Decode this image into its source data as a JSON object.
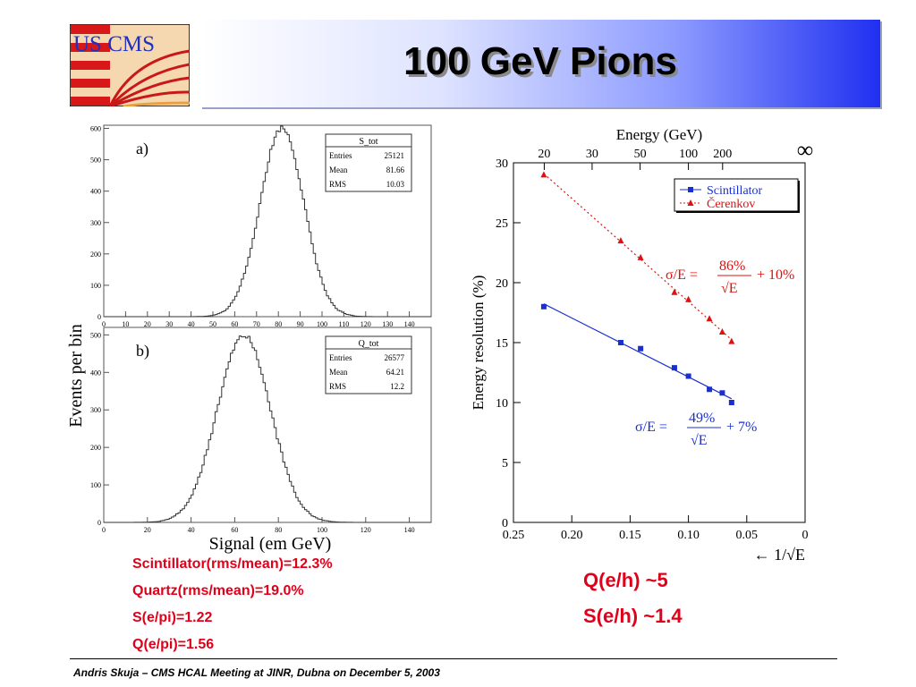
{
  "slide": {
    "title": "100 GeV Pions",
    "logo_text": "US CMS",
    "footer": "Andris Skuja – CMS HCAL Meeting at JINR, Dubna on December 5, 2003",
    "stats": [
      "Scintillator(rms/mean)=12.3%",
      "Quartz(rms/mean)=19.0%",
      "S(e/pi)=1.22",
      "Q(e/pi)=1.56"
    ],
    "qe": [
      "Q(e/h) ~5",
      "S(e/h) ~1.4"
    ]
  },
  "chart_data": [
    {
      "type": "bar",
      "panel_label": "a)",
      "ylabel": "Events per bin",
      "xlim": [
        0,
        150
      ],
      "ylim": [
        0,
        610
      ],
      "xticks": [
        0,
        10,
        20,
        30,
        40,
        50,
        60,
        70,
        80,
        90,
        100,
        110,
        120,
        130,
        140
      ],
      "yticks": [
        0,
        100,
        200,
        300,
        400,
        500,
        600
      ],
      "legend": {
        "title": "S_tot",
        "rows": [
          [
            "Entries",
            "25121"
          ],
          [
            "Mean",
            "81.66"
          ],
          [
            "RMS",
            "10.03"
          ]
        ]
      },
      "mean": 81.66,
      "rms": 10.03,
      "peak": 600
    },
    {
      "type": "bar",
      "panel_label": "b)",
      "xlabel": "Signal (em GeV)",
      "xlim": [
        0,
        150
      ],
      "ylim": [
        0,
        520
      ],
      "xticks": [
        0,
        20,
        40,
        60,
        80,
        100,
        120,
        140
      ],
      "yticks": [
        0,
        100,
        200,
        300,
        400,
        500
      ],
      "legend": {
        "title": "Q_tot",
        "rows": [
          [
            "Entries",
            "26577"
          ],
          [
            "Mean",
            "64.21"
          ],
          [
            "RMS",
            "12.2"
          ]
        ]
      },
      "mean": 64.21,
      "rms": 12.2,
      "peak": 500
    },
    {
      "type": "line",
      "xlabel": "← 1/√E",
      "ylabel": "Energy resolution (%)",
      "top_axis_label": "Energy (GeV)",
      "top_ticks": [
        {
          "label": "20",
          "E": 20
        },
        {
          "label": "30",
          "E": 30
        },
        {
          "label": "50",
          "E": 50
        },
        {
          "label": "100",
          "E": 100
        },
        {
          "label": "200",
          "E": 200
        },
        {
          "label": "∞",
          "E": null
        }
      ],
      "xlim": [
        0.25,
        0
      ],
      "ylim": [
        0,
        30
      ],
      "xticks": [
        {
          "v": 0.25,
          "label": "0.25"
        },
        {
          "v": 0.2,
          "label": "0.20"
        },
        {
          "v": 0.15,
          "label": "0.15"
        },
        {
          "v": 0.1,
          "label": "0.10"
        },
        {
          "v": 0.05,
          "label": "0.05"
        },
        {
          "v": 0,
          "label": "0"
        }
      ],
      "yticks": [
        0,
        5,
        10,
        15,
        20,
        25,
        30
      ],
      "legend_position": "top-right",
      "series": [
        {
          "name": "Scintillator",
          "color": "#1a2fd0",
          "x": [
            0.224,
            0.158,
            0.141,
            0.112,
            0.1,
            0.082,
            0.071,
            0.063
          ],
          "y": [
            18.0,
            15.0,
            14.5,
            12.9,
            12.2,
            11.1,
            10.8,
            10.0
          ],
          "fit": {
            "label_pre": "σ/E =",
            "num": "49%",
            "den": "E",
            "label_post": "+ 7%"
          }
        },
        {
          "name": "Čerenkov",
          "color": "#e01010",
          "x": [
            0.224,
            0.158,
            0.141,
            0.112,
            0.1,
            0.082,
            0.071,
            0.063
          ],
          "y": [
            29.0,
            23.5,
            22.1,
            19.2,
            18.6,
            17.0,
            15.9,
            15.1
          ],
          "fit": {
            "label_pre": "σ/E =",
            "num": "86%",
            "den": "E",
            "label_post": "+ 10%"
          }
        }
      ]
    }
  ]
}
